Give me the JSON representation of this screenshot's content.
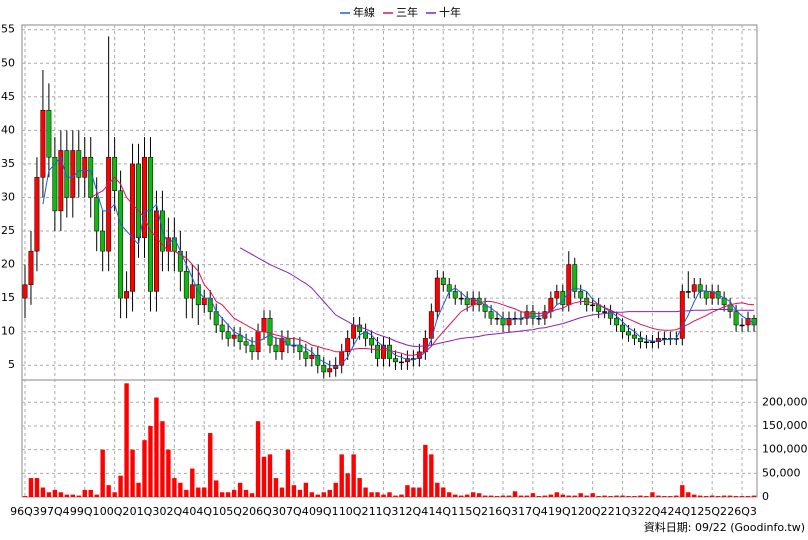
{
  "chart_data": {
    "type": "candlestick",
    "categories": [
      "96Q3",
      null,
      null,
      null,
      null,
      "97Q4",
      null,
      null,
      null,
      null,
      "99Q1",
      null,
      null,
      null,
      null,
      "00Q2",
      null,
      null,
      null,
      null,
      "01Q3",
      null,
      null,
      null,
      null,
      "02Q4",
      null,
      null,
      null,
      null,
      "04Q1",
      null,
      null,
      null,
      null,
      "05Q2",
      null,
      null,
      null,
      null,
      "06Q3",
      null,
      null,
      null,
      null,
      "07Q4",
      null,
      null,
      null,
      null,
      "09Q1",
      null,
      null,
      null,
      null,
      "10Q2",
      null,
      null,
      null,
      null,
      "11Q3",
      null,
      null,
      null,
      null,
      "12Q4",
      null,
      null,
      null,
      null,
      "14Q1",
      null,
      null,
      null,
      null,
      "15Q2",
      null,
      null,
      null,
      null,
      "16Q3",
      null,
      null,
      null,
      null,
      "17Q4",
      null,
      null,
      null,
      null,
      "19Q1",
      null,
      null,
      null,
      null,
      "20Q2",
      null,
      null,
      null,
      null,
      "21Q3",
      null,
      null,
      null,
      null,
      "22Q4",
      null,
      null,
      null,
      null,
      "24Q1",
      null,
      null,
      null,
      null,
      "25Q2",
      null,
      null,
      null,
      null,
      "26Q3",
      null,
      null
    ],
    "open": [
      15,
      17,
      22,
      33,
      43,
      36,
      28,
      37,
      30,
      37,
      33,
      36,
      30,
      25,
      22,
      36,
      31,
      15,
      16,
      35,
      24,
      36,
      16,
      28,
      22,
      24,
      22,
      19,
      15,
      17,
      14,
      15,
      13,
      11,
      10,
      9,
      9.5,
      8.5,
      8,
      7,
      10,
      12,
      8,
      7,
      9,
      8,
      8,
      7,
      6,
      6.5,
      5,
      4,
      4.5,
      5,
      7,
      9,
      11,
      10,
      9,
      8,
      6,
      8,
      6,
      5.5,
      5.5,
      6,
      6,
      7,
      9,
      13,
      18,
      17,
      16,
      15,
      15,
      14,
      15,
      14,
      13,
      12,
      12,
      11,
      12,
      12,
      12,
      13,
      12,
      12,
      13,
      15,
      16,
      14,
      20,
      16,
      15,
      14,
      14,
      13,
      13,
      12,
      11,
      10,
      9.5,
      9,
      8.5,
      8.5,
      8.5,
      9,
      9,
      9,
      9,
      16,
      16,
      17,
      16,
      15,
      16,
      15,
      14,
      13,
      11,
      11,
      12
    ],
    "high": [
      20,
      25,
      36,
      49,
      47,
      39,
      40,
      40,
      40,
      40,
      39,
      39,
      33,
      28,
      54,
      39,
      34,
      19,
      38,
      38,
      39,
      39,
      31,
      31,
      27,
      27,
      25,
      22,
      20,
      20,
      16.2,
      16.2,
      14.2,
      12.2,
      11.2,
      10.7,
      10.7,
      9.7,
      9.2,
      11.2,
      13.2,
      13.2,
      9.2,
      10.2,
      10.2,
      9.2,
      9.2,
      8.2,
      7.7,
      7.7,
      6.2,
      5.7,
      6.2,
      8.2,
      10.2,
      12.2,
      12.2,
      11.2,
      10.2,
      9.2,
      9.2,
      9.2,
      7.2,
      6.7,
      7.2,
      7.2,
      8.2,
      10.2,
      14.2,
      19.2,
      19,
      18,
      17,
      16,
      16,
      16,
      16,
      15,
      14,
      13,
      13,
      13,
      13,
      13,
      14,
      14,
      13,
      14,
      16,
      17,
      17,
      22,
      21,
      17,
      16,
      15,
      15,
      14,
      14,
      13,
      12,
      11,
      10.5,
      10,
      9.5,
      9.5,
      10,
      10,
      10,
      10,
      17,
      19,
      18,
      18,
      17,
      17,
      17,
      16,
      15,
      14,
      12,
      13,
      12.5
    ],
    "low": [
      12,
      14,
      19,
      30,
      33,
      25,
      25,
      27,
      27,
      30,
      30,
      27,
      22,
      19,
      19,
      28,
      12,
      12,
      13,
      21,
      21,
      13,
      13,
      19,
      19,
      19,
      16,
      12,
      12,
      11,
      12.8,
      11.8,
      9.8,
      8.8,
      7.8,
      7.8,
      7.3,
      6.8,
      5.8,
      5.8,
      8.8,
      6.8,
      5.8,
      5.8,
      6.8,
      6.8,
      5.8,
      4.8,
      4.8,
      3.8,
      3,
      3.2,
      3.3,
      3.8,
      5.8,
      7.8,
      8.8,
      7.8,
      6.8,
      4.8,
      4.8,
      4.8,
      4.3,
      4.3,
      4.3,
      4.8,
      4.8,
      5.8,
      7.8,
      11.8,
      16,
      15,
      14,
      14,
      13,
      13,
      13,
      12,
      11,
      11,
      10,
      10,
      11,
      11,
      11,
      11,
      11,
      11,
      12,
      14,
      13,
      13,
      15,
      14,
      13,
      13,
      12,
      12,
      11,
      10,
      9,
      8.5,
      8,
      7.5,
      7.5,
      7.5,
      7.5,
      8,
      8,
      8,
      8,
      15,
      15,
      15,
      14,
      14,
      14,
      13,
      12,
      10,
      10,
      10,
      10
    ],
    "close": [
      17,
      22,
      33,
      43,
      36,
      28,
      37,
      30,
      37,
      33,
      36,
      30,
      25,
      22,
      36,
      31,
      15,
      16,
      35,
      24,
      36,
      16,
      28,
      22,
      24,
      22,
      19,
      15,
      17,
      14,
      15,
      13,
      11,
      10,
      9,
      9.5,
      8.5,
      8,
      7,
      10,
      12,
      8,
      7,
      9,
      8,
      8,
      7,
      6,
      6.5,
      5,
      4,
      4.5,
      5,
      7,
      9,
      11,
      10,
      9,
      8,
      6,
      8,
      6,
      5.5,
      5.5,
      6,
      6,
      7,
      9,
      13,
      18,
      17,
      16,
      15,
      15,
      14,
      15,
      14,
      13,
      12,
      12,
      11,
      12,
      12,
      12,
      13,
      12,
      12,
      13,
      15,
      16,
      14,
      20,
      16,
      15,
      14,
      14,
      13,
      13,
      12,
      11,
      10,
      9.5,
      9,
      8.5,
      8.5,
      8.5,
      9,
      9,
      9,
      9,
      16,
      16,
      17,
      16,
      15,
      16,
      15,
      14,
      13,
      11,
      11,
      12,
      11
    ],
    "up_color": "#ff0000",
    "down_color": "#11b811",
    "series": [
      {
        "name": "年線",
        "color": "#1f5fd6",
        "values": [
          null,
          null,
          null,
          29,
          34,
          35,
          36,
          33,
          33,
          34,
          34,
          34,
          31,
          28,
          28,
          29,
          26,
          25,
          24,
          23,
          28,
          28,
          29,
          25,
          23,
          24,
          22,
          20,
          18,
          16,
          15,
          15,
          13,
          12,
          11,
          10,
          9.5,
          9,
          8.5,
          8.5,
          9,
          9.5,
          9,
          9,
          8,
          8,
          8,
          7.5,
          7,
          6,
          5.5,
          5,
          4.8,
          5.2,
          6.2,
          8,
          9.5,
          10,
          9.5,
          8.5,
          7.8,
          7.2,
          6.5,
          6.2,
          5.8,
          5.8,
          6.2,
          7,
          8.8,
          12,
          14,
          16,
          16.5,
          15.8,
          15,
          14.8,
          14.5,
          14,
          13.5,
          12.8,
          12,
          11.8,
          11.8,
          12,
          12.3,
          12.3,
          12.3,
          12.5,
          13,
          14,
          14.5,
          16,
          16.5,
          16.3,
          16,
          14.8,
          14,
          13.5,
          13,
          12.3,
          11.5,
          10.6,
          10,
          9.2,
          8.8,
          8.6,
          8.6,
          8.8,
          8.9,
          9,
          10.8,
          12.5,
          14.5,
          16.2,
          16,
          16,
          15.5,
          15,
          14.5,
          13.2,
          12.3,
          11.8,
          11.3
        ]
      },
      {
        "name": "三年",
        "color": "#e0105a",
        "values": [
          null,
          null,
          null,
          null,
          null,
          null,
          null,
          null,
          null,
          null,
          null,
          30,
          30.5,
          31,
          32,
          33,
          32,
          30,
          29,
          28,
          27,
          25,
          24,
          23,
          22,
          22,
          21.5,
          21,
          20,
          19,
          17,
          16,
          14.5,
          14,
          13,
          12,
          11.5,
          11,
          10.5,
          10,
          10,
          9.8,
          9.5,
          9.3,
          9,
          9,
          8.8,
          8.5,
          8,
          7.8,
          7.5,
          7.3,
          7,
          7,
          7.2,
          7.4,
          7.5,
          7.5,
          7.4,
          7.3,
          7.3,
          7.2,
          7,
          6.8,
          6.5,
          6.5,
          6.7,
          7,
          7.8,
          9,
          10,
          11,
          12,
          13,
          13.5,
          14,
          14.3,
          14.5,
          14.5,
          14.3,
          14,
          13.7,
          13.4,
          13,
          12.8,
          12.7,
          12.7,
          12.8,
          13,
          13.3,
          13.5,
          14,
          14.3,
          14.5,
          14.5,
          14.3,
          14,
          13.6,
          13.2,
          12.8,
          12.3,
          11.9,
          11.5,
          11.1,
          10.8,
          10.5,
          10.3,
          10.2,
          10.2,
          10.3,
          10.7,
          11.1,
          11.6,
          12,
          12.4,
          12.9,
          13.3,
          13.7,
          14,
          14.2,
          14.3,
          14.1,
          14
        ]
      },
      {
        "name": "十年",
        "color": "#8a1fc2",
        "values": [
          null,
          null,
          null,
          null,
          null,
          null,
          null,
          null,
          null,
          null,
          null,
          null,
          null,
          null,
          null,
          null,
          null,
          null,
          null,
          null,
          null,
          null,
          null,
          null,
          null,
          null,
          null,
          null,
          null,
          null,
          null,
          null,
          null,
          null,
          null,
          null,
          22.5,
          22,
          21.5,
          21,
          20.5,
          20,
          19.6,
          19.2,
          18.8,
          18.3,
          17.7,
          17.2,
          16.5,
          15.5,
          14.5,
          13.5,
          12.5,
          12,
          11.5,
          11,
          10.7,
          10.4,
          10,
          9.6,
          9.3,
          9,
          8.6,
          8.3,
          8,
          7.8,
          7.8,
          7.9,
          8,
          8.2,
          8.4,
          8.6,
          8.8,
          9,
          9.1,
          9.2,
          9.3,
          9.5,
          9.6,
          9.7,
          9.8,
          9.9,
          10,
          10.1,
          10.2,
          10.3,
          10.5,
          10.6,
          10.8,
          11,
          11.2,
          11.5,
          11.8,
          12.1,
          12.3,
          12.5,
          12.6,
          12.7,
          12.8,
          12.9,
          12.9,
          13,
          13,
          13,
          13,
          13,
          13,
          13,
          13,
          13,
          13.1,
          13.1,
          13.2,
          13.2,
          13.2,
          13.3,
          13.3,
          13.3,
          13.3,
          13.2,
          13.2,
          13.2,
          13.2
        ]
      }
    ],
    "ylim": [
      2.8,
      55.7
    ],
    "yticks": [
      5,
      10,
      15,
      20,
      25,
      30,
      35,
      40,
      45,
      50,
      55
    ],
    "grid": true,
    "volume": {
      "color": "#ff0000",
      "ylim": [
        0,
        247000
      ],
      "yticks": [
        0,
        {
          "value": 50000,
          "label": "50,000"
        },
        {
          "value": 100000,
          "label": "100,000"
        },
        {
          "value": 150000,
          "label": "150,000"
        },
        {
          "value": 200000,
          "label": "200,000"
        }
      ],
      "values": [
        2000,
        40000,
        40000,
        20000,
        10000,
        15000,
        10000,
        5000,
        5000,
        3000,
        15000,
        15000,
        5000,
        100000,
        25000,
        10000,
        45000,
        240000,
        100000,
        30000,
        120000,
        150000,
        210000,
        160000,
        100000,
        40000,
        30000,
        15000,
        60000,
        20000,
        20000,
        135000,
        35000,
        10000,
        10000,
        15000,
        30000,
        15000,
        8000,
        160000,
        85000,
        90000,
        40000,
        20000,
        100000,
        25000,
        15000,
        30000,
        10000,
        5000,
        10000,
        15000,
        30000,
        90000,
        50000,
        90000,
        40000,
        20000,
        10000,
        10000,
        5000,
        10000,
        3000,
        5000,
        25000,
        20000,
        20000,
        110000,
        90000,
        30000,
        20000,
        10000,
        5000,
        3000,
        5000,
        10000,
        8000,
        3000,
        3000,
        2000,
        3000,
        3000,
        12000,
        3000,
        3000,
        8000,
        2000,
        3000,
        5000,
        10000,
        5000,
        3000,
        3000,
        8000,
        3000,
        8000,
        2000,
        3000,
        2000,
        3000,
        3000,
        2000,
        2000,
        3000,
        2000,
        10000,
        3000,
        2000,
        2000,
        3000,
        25000,
        10000,
        5000,
        3000,
        2000,
        3000,
        2000,
        3000,
        3000,
        2000,
        2000,
        2000,
        3000
      ]
    },
    "footer": "資料日期: 09/22  (Goodinfo.tw)"
  }
}
